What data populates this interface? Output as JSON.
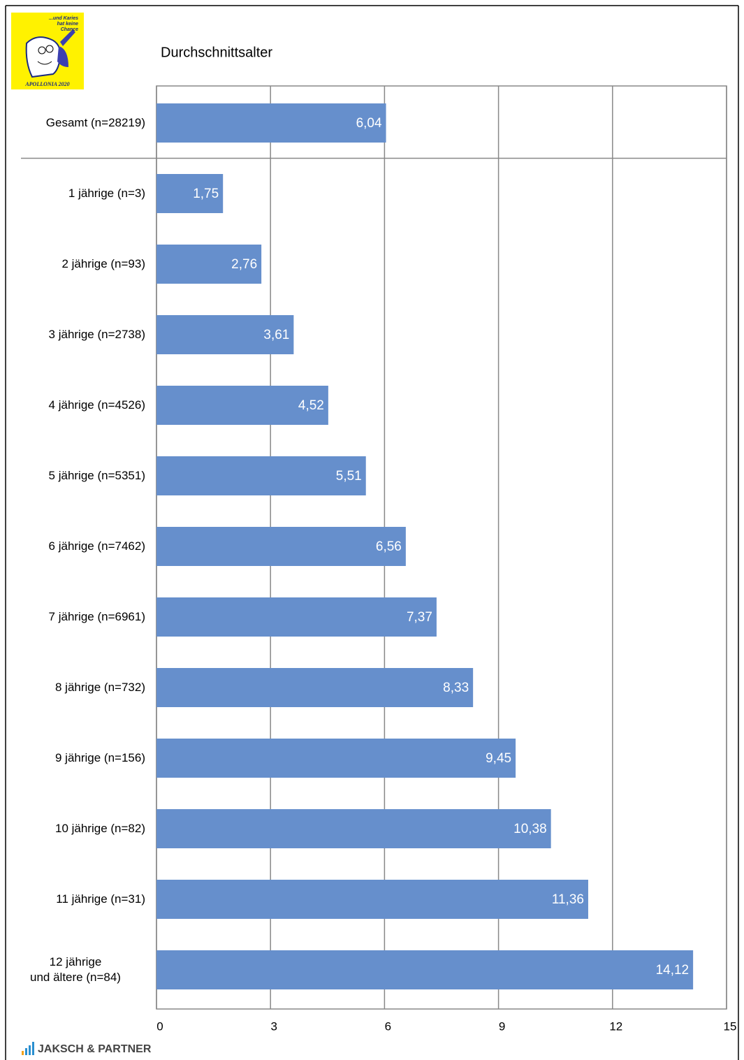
{
  "chart_data": {
    "type": "bar",
    "orientation": "horizontal",
    "title": "Durchschnittsalter",
    "categories": [
      "Gesamt (n=28219)",
      "1 jährige (n=3)",
      "2 jährige (n=93)",
      "3 jährige (n=2738)",
      "4 jährige (n=4526)",
      "5 jährige (n=5351)",
      "6 jährige (n=7462)",
      "7 jährige (n=6961)",
      "8 jährige (n=732)",
      "9 jährige (n=156)",
      "10 jährige (n=82)",
      "11 jährige (n=31)",
      "12 jährige\nund ältere (n=84)"
    ],
    "values": [
      6.04,
      1.75,
      2.76,
      3.61,
      4.52,
      5.51,
      6.56,
      7.37,
      8.33,
      9.45,
      10.38,
      11.36,
      14.12
    ],
    "value_labels": [
      "6,04",
      "1,75",
      "2,76",
      "3,61",
      "4,52",
      "5,51",
      "6,56",
      "7,37",
      "8,33",
      "9,45",
      "10,38",
      "11,36",
      "14,12"
    ],
    "color": "#668fcc",
    "xlim": [
      0,
      15
    ],
    "xticks": [
      0,
      3,
      6,
      9,
      12,
      15
    ],
    "grid": true
  },
  "logo": {
    "lines": [
      "...und Karies",
      "hat keine",
      "Chance"
    ],
    "name": "APOLLONIA 2020"
  },
  "footer": {
    "brand": "JAKSCH & PARTNER"
  }
}
